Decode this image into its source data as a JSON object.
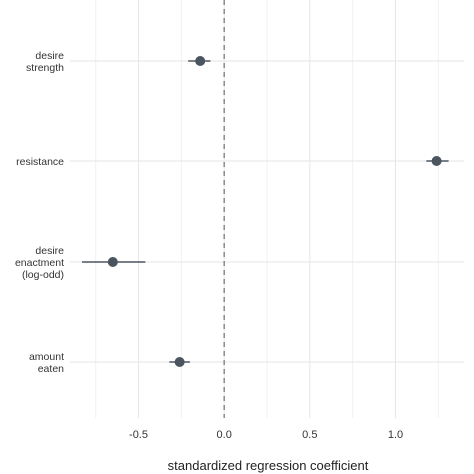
{
  "chart_data": {
    "type": "scatter",
    "subtype": "forest-plot",
    "title": "",
    "xlabel": "standardized regression coefficient",
    "ylabel": "",
    "xlim": [
      -0.9,
      1.4
    ],
    "x_ticks": [
      -0.5,
      0.0,
      0.5,
      1.0
    ],
    "x_tick_labels": [
      "-0.5",
      "0.0",
      "0.5",
      "1.0"
    ],
    "reference_line": 0,
    "grid": true,
    "legend": "none",
    "categories": [
      {
        "label": [
          "desire",
          "strength"
        ],
        "estimate": -0.14,
        "lower": -0.21,
        "upper": -0.08
      },
      {
        "label": [
          "resistance"
        ],
        "estimate": 1.24,
        "lower": 1.18,
        "upper": 1.31
      },
      {
        "label": [
          "desire",
          "enactment",
          "(log-odd)"
        ],
        "estimate": -0.65,
        "lower": -0.83,
        "upper": -0.46
      },
      {
        "label": [
          "amount",
          "eaten"
        ],
        "estimate": -0.26,
        "lower": -0.32,
        "upper": -0.2
      }
    ],
    "colors": {
      "point": "#4a5560",
      "grid": "#e6e6e6",
      "reference": "#7a7a7a"
    }
  }
}
